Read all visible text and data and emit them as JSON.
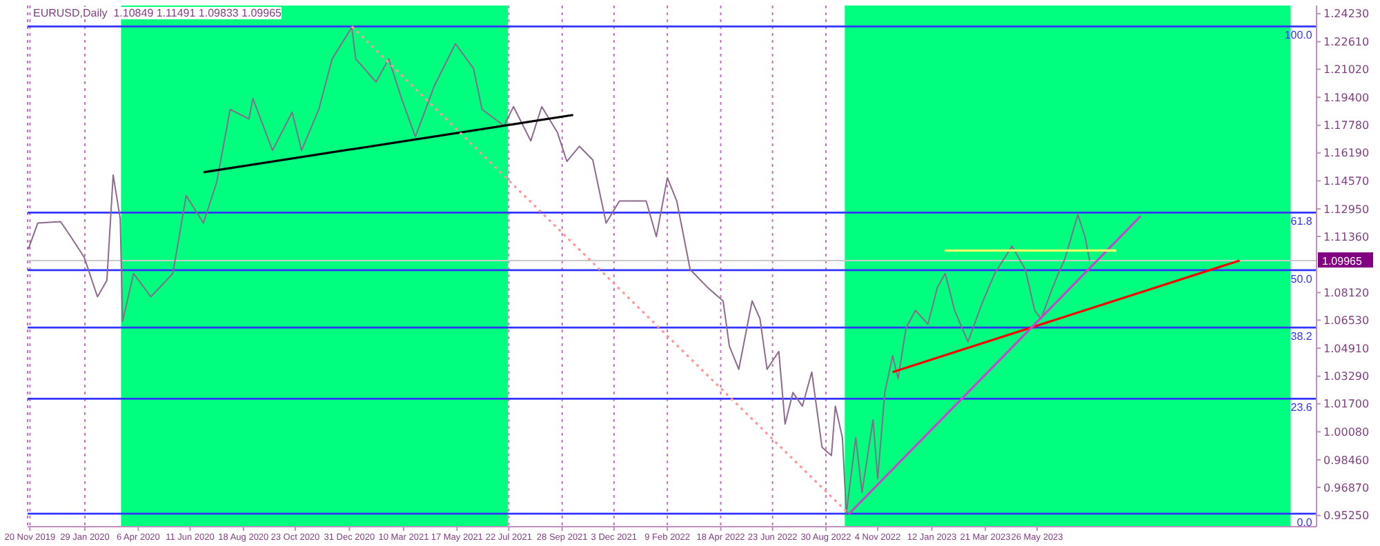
{
  "chart_data": {
    "type": "line",
    "title": "EURUSD,Daily  1.10849 1.11491 1.09833 1.09965",
    "x": [
      "2019-11-18",
      "2019-11-30",
      "2019-12-29",
      "2020-01-11",
      "2020-01-28",
      "2020-02-14",
      "2020-02-26",
      "2020-03-05",
      "2020-03-14",
      "2020-03-17",
      "2020-03-31",
      "2020-04-22",
      "2020-05-20",
      "2020-06-06",
      "2020-06-28",
      "2020-07-15",
      "2020-08-01",
      "2020-08-25",
      "2020-08-30",
      "2020-09-24",
      "2020-10-19",
      "2020-10-31",
      "2020-11-22",
      "2020-12-09",
      "2021-01-03",
      "2021-01-08",
      "2021-02-03",
      "2021-02-19",
      "2021-03-08",
      "2021-03-25",
      "2021-04-18",
      "2021-05-15",
      "2021-06-07",
      "2021-06-18",
      "2021-07-16",
      "2021-07-28",
      "2021-08-19",
      "2021-09-02",
      "2021-09-22",
      "2021-10-04",
      "2021-10-20",
      "2021-11-06",
      "2021-11-23",
      "2021-12-10",
      "2022-01-13",
      "2022-01-26",
      "2022-02-09",
      "2022-02-21",
      "2022-03-10",
      "2022-04-01",
      "2022-04-21",
      "2022-04-29",
      "2022-05-11",
      "2022-05-28",
      "2022-06-07",
      "2022-06-16",
      "2022-07-01",
      "2022-07-09",
      "2022-07-19",
      "2022-07-31",
      "2022-08-12",
      "2022-08-25",
      "2022-09-06",
      "2022-09-11",
      "2022-09-20",
      "2022-09-25",
      "2022-10-07",
      "2022-10-15",
      "2022-10-29",
      "2022-11-04",
      "2022-11-13",
      "2022-11-23",
      "2022-11-30",
      "2022-12-10",
      "2022-12-22",
      "2023-01-07",
      "2023-01-19",
      "2023-01-29",
      "2023-02-10",
      "2023-02-27",
      "2023-03-16",
      "2023-04-02",
      "2023-04-24",
      "2023-05-11",
      "2023-05-23",
      "2023-05-31",
      "2023-06-13",
      "2023-06-22",
      "2023-06-30",
      "2023-07-17",
      "2023-07-26",
      "2023-08-01"
    ],
    "series": [
      {
        "color": "#8c6a8c",
        "values": [
          1.1064,
          1.1214,
          1.1222,
          1.1135,
          1.1017,
          1.0788,
          1.0882,
          1.1491,
          1.1238,
          1.0645,
          1.0922,
          1.0788,
          1.0922,
          1.1372,
          1.1214,
          1.1451,
          1.187,
          1.1815,
          1.1933,
          1.1633,
          1.1854,
          1.1633,
          1.187,
          1.2162,
          1.2344,
          1.2162,
          1.2028,
          1.2162,
          1.1925,
          1.1712,
          1.2004,
          1.2249,
          1.2107,
          1.187,
          1.1775,
          1.1886,
          1.1688,
          1.1886,
          1.1736,
          1.157,
          1.1657,
          1.1578,
          1.1214,
          1.1341,
          1.1341,
          1.1135,
          1.1475,
          1.1341,
          1.0946,
          1.0843,
          1.0764,
          1.0503,
          1.0369,
          1.0764,
          1.0661,
          1.0369,
          1.0472,
          1.0053,
          1.0235,
          1.0156,
          1.0353,
          0.9919,
          0.9871,
          1.0156,
          0.9974,
          0.9536,
          0.9974,
          0.9658,
          1.0077,
          0.9737,
          1.0235,
          1.0448,
          1.0314,
          1.0606,
          1.0709,
          1.063,
          1.0843,
          1.0922,
          1.0709,
          1.0527,
          1.074,
          1.0922,
          1.108,
          1.0946,
          1.0709,
          1.0661,
          1.0819,
          1.0922,
          1.1001,
          1.1262,
          1.1135,
          1.0997
        ]
      },
      {
        "type": "line",
        "color": "#000000",
        "x": [
          "2020-06-28",
          "2021-10-12"
        ],
        "values": [
          1.1507,
          1.1838
        ]
      },
      {
        "type": "line",
        "color": "#ff9999",
        "line_style": "dotted",
        "x": [
          "2021-01-03",
          "2022-09-28"
        ],
        "values": [
          1.2349,
          0.9535
        ]
      },
      {
        "type": "line",
        "color": "#ff0000",
        "x": [
          "2022-11-23",
          "2024-02-08"
        ],
        "values": [
          1.0353,
          1.0997
        ]
      },
      {
        "type": "line",
        "color": "#cc44cc",
        "x": [
          "2022-09-28",
          "2023-10-05"
        ],
        "values": [
          0.9532,
          1.1254
        ]
      },
      {
        "type": "line",
        "color": "#ffff66",
        "x": [
          "2023-01-28",
          "2023-09-04"
        ],
        "values": [
          1.1055,
          1.1055
        ]
      }
    ],
    "xlim": [
      "2019-11-17",
      "2024-05-16"
    ],
    "xticks": [
      {
        "value": "2019-11-20",
        "label": "20 Nov 2019"
      },
      {
        "value": "2020-01-29",
        "label": "29 Jan 2020"
      },
      {
        "value": "2020-04-06",
        "label": "6 Apr 2020"
      },
      {
        "value": "2020-06-11",
        "label": "11 Jun 2020"
      },
      {
        "value": "2020-08-18",
        "label": "18 Aug 2020"
      },
      {
        "value": "2020-10-23",
        "label": "23 Oct 2020"
      },
      {
        "value": "2020-12-31",
        "label": "31 Dec 2020"
      },
      {
        "value": "2021-03-10",
        "label": "10 Mar 2021"
      },
      {
        "value": "2021-05-17",
        "label": "17 May 2021"
      },
      {
        "value": "2021-07-22",
        "label": "22 Jul 2021"
      },
      {
        "value": "2021-09-28",
        "label": "28 Sep 2021"
      },
      {
        "value": "2021-12-03",
        "label": "3 Dec 2021"
      },
      {
        "value": "2022-02-09",
        "label": "9 Feb 2022"
      },
      {
        "value": "2022-04-18",
        "label": "18 Apr 2022"
      },
      {
        "value": "2022-06-23",
        "label": "23 Jun 2022"
      },
      {
        "value": "2022-08-30",
        "label": "30 Aug 2022"
      },
      {
        "value": "2022-11-04",
        "label": "4 Nov 2022"
      },
      {
        "value": "2023-01-12",
        "label": "12 Jan 2023"
      },
      {
        "value": "2023-03-21",
        "label": "21 Mar 2023"
      },
      {
        "value": "2023-05-26",
        "label": "26 May 2023"
      }
    ],
    "ylim": [
      0.946,
      1.247
    ],
    "yticks": [
      {
        "value": 1.2423,
        "label": "1.24230"
      },
      {
        "value": 1.2261,
        "label": "1.22610"
      },
      {
        "value": 1.2102,
        "label": "1.21020"
      },
      {
        "value": 1.194,
        "label": "1.19400"
      },
      {
        "value": 1.1778,
        "label": "1.17780"
      },
      {
        "value": 1.1619,
        "label": "1.16190"
      },
      {
        "value": 1.1457,
        "label": "1.14570"
      },
      {
        "value": 1.1295,
        "label": "1.12950"
      },
      {
        "value": 1.1136,
        "label": "1.11360"
      },
      {
        "value": 1.0812,
        "label": "1.08120"
      },
      {
        "value": 1.0653,
        "label": "1.06530"
      },
      {
        "value": 1.0491,
        "label": "1.04910"
      },
      {
        "value": 1.0329,
        "label": "1.03290"
      },
      {
        "value": 1.017,
        "label": "1.01700"
      },
      {
        "value": 1.0008,
        "label": "1.00080"
      },
      {
        "value": 0.9846,
        "label": "0.98460"
      },
      {
        "value": 0.9687,
        "label": "0.96870"
      },
      {
        "value": 0.9525,
        "label": "0.95250"
      }
    ],
    "grid": "x",
    "ref_lines": [
      {
        "axis": "y",
        "value": 1.2349,
        "color": "#3333ff"
      },
      {
        "axis": "y",
        "value": 1.1274,
        "color": "#3333ff"
      },
      {
        "axis": "y",
        "value": 1.0942,
        "color": "#3333ff"
      },
      {
        "axis": "y",
        "value": 1.061,
        "color": "#3333ff"
      },
      {
        "axis": "y",
        "value": 1.0199,
        "color": "#3333ff"
      },
      {
        "axis": "y",
        "value": 0.9535,
        "color": "#3333ff"
      },
      {
        "axis": "y",
        "value": 1.09965,
        "label": "1.09965",
        "color": "#c8c8c8"
      }
    ],
    "annotations": [
      {
        "text": "100.0",
        "x": "2024-05-14",
        "y": 1.2349
      },
      {
        "text": "61.8",
        "x": "2024-05-14",
        "y": 1.1274
      },
      {
        "text": "50.0",
        "x": "2024-05-14",
        "y": 1.0942
      },
      {
        "text": "38.2",
        "x": "2024-05-14",
        "y": 1.061
      },
      {
        "text": "23.6",
        "x": "2024-05-14",
        "y": 1.0199
      },
      {
        "text": "0.0",
        "x": "2024-05-14",
        "y": 0.9535
      }
    ],
    "bands": [
      {
        "axis": "x",
        "from": "2020-03-15",
        "to": "2021-07-21",
        "color": "#00ff7f"
      },
      {
        "axis": "x",
        "from": "2022-09-23",
        "to": "2024-04-13",
        "color": "#00ff7f"
      }
    ]
  }
}
